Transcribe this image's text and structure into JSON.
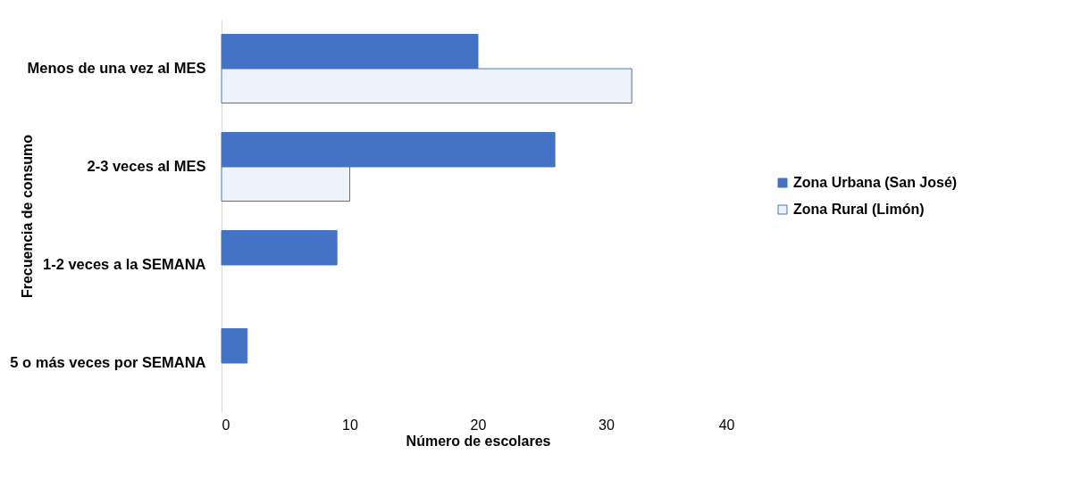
{
  "chart_data": {
    "type": "bar",
    "orientation": "horizontal",
    "xlabel": "Número de escolares",
    "ylabel": "Frecuencia de consumo",
    "categories": [
      "Menos de una vez al MES",
      "2-3 veces al MES",
      "1-2 veces a la SEMANA",
      "5 o más  veces por SEMANA"
    ],
    "series": [
      {
        "name": "Zona Urbana (San José)",
        "color": "#4472c4",
        "values": [
          20,
          26,
          9,
          2
        ]
      },
      {
        "name": "Zona Rural (Limón)",
        "color": "#eef2fa",
        "values": [
          32,
          10,
          null,
          null
        ]
      }
    ],
    "xlim": [
      0,
      40
    ],
    "xticks": [
      0,
      10,
      20,
      30,
      40
    ],
    "grid": false,
    "legend": "right"
  }
}
